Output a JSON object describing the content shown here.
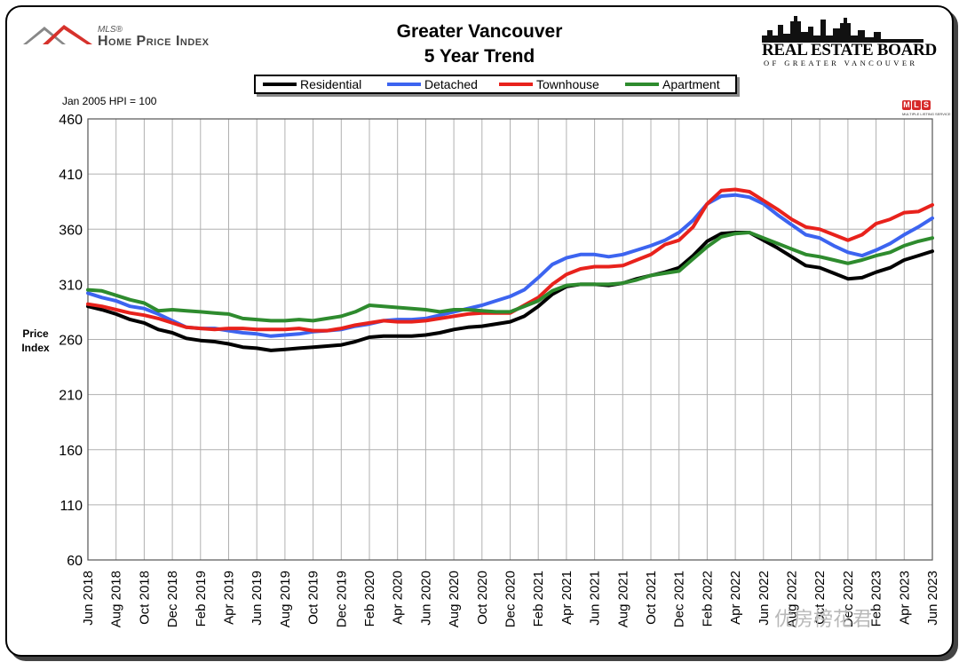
{
  "header": {
    "logo_left_small": "MLS®",
    "logo_left_main": "Home Price Index",
    "title_line1": "Greater Vancouver",
    "title_line2": "5 Year Trend",
    "logo_right_main": "REAL ESTATE BOARD",
    "logo_right_sub": "OF GREATER VANCOUVER",
    "mls_letters": [
      "M",
      "L",
      "S"
    ],
    "mls_sub": "MULTIPLE LISTING SERVICE"
  },
  "note": "Jan 2005 HPI = 100",
  "watermark": "优房榜花君",
  "chart_data": {
    "type": "line",
    "title": "Greater Vancouver 5 Year Trend",
    "xlabel": "",
    "ylabel_lines": [
      "Price",
      "Index"
    ],
    "ylim": [
      60,
      460
    ],
    "yticks": [
      60,
      110,
      160,
      210,
      260,
      310,
      360,
      410,
      460
    ],
    "x_tick_labels": [
      "Jun 2018",
      "Aug 2018",
      "Oct 2018",
      "Dec 2018",
      "Feb 2019",
      "Apr 2019",
      "Jun 2019",
      "Aug 2019",
      "Oct 2019",
      "Dec 2019",
      "Feb 2020",
      "Apr 2020",
      "Jun 2020",
      "Aug 2020",
      "Oct 2020",
      "Dec 2020",
      "Feb 2021",
      "Apr 2021",
      "Jun 2021",
      "Aug 2021",
      "Oct 2021",
      "Dec 2021",
      "Feb 2022",
      "Apr 2022",
      "Jun 2022",
      "Aug 2022",
      "Oct 2022",
      "Dec 2022",
      "Feb 2023",
      "Apr 2023",
      "Jun 2023"
    ],
    "x": [
      "Jun 2018",
      "Jul 2018",
      "Aug 2018",
      "Sep 2018",
      "Oct 2018",
      "Nov 2018",
      "Dec 2018",
      "Jan 2019",
      "Feb 2019",
      "Mar 2019",
      "Apr 2019",
      "May 2019",
      "Jun 2019",
      "Jul 2019",
      "Aug 2019",
      "Sep 2019",
      "Oct 2019",
      "Nov 2019",
      "Dec 2019",
      "Jan 2020",
      "Feb 2020",
      "Mar 2020",
      "Apr 2020",
      "May 2020",
      "Jun 2020",
      "Jul 2020",
      "Aug 2020",
      "Sep 2020",
      "Oct 2020",
      "Nov 2020",
      "Dec 2020",
      "Jan 2021",
      "Feb 2021",
      "Mar 2021",
      "Apr 2021",
      "May 2021",
      "Jun 2021",
      "Jul 2021",
      "Aug 2021",
      "Sep 2021",
      "Oct 2021",
      "Nov 2021",
      "Dec 2021",
      "Jan 2022",
      "Feb 2022",
      "Mar 2022",
      "Apr 2022",
      "May 2022",
      "Jun 2022",
      "Jul 2022",
      "Aug 2022",
      "Sep 2022",
      "Oct 2022",
      "Nov 2022",
      "Dec 2022",
      "Jan 2023",
      "Feb 2023",
      "Mar 2023",
      "Apr 2023",
      "May 2023",
      "Jun 2023"
    ],
    "series": [
      {
        "name": "Residential",
        "color": "#000000",
        "values": [
          290,
          287,
          283,
          278,
          275,
          269,
          266,
          261,
          259,
          258,
          256,
          253,
          252,
          250,
          251,
          252,
          253,
          254,
          255,
          258,
          262,
          263,
          263,
          263,
          264,
          266,
          269,
          271,
          272,
          274,
          276,
          281,
          290,
          301,
          308,
          310,
          310,
          309,
          311,
          315,
          318,
          321,
          325,
          336,
          349,
          356,
          357,
          357,
          350,
          343,
          335,
          327,
          325,
          320,
          315,
          316,
          321,
          325,
          332,
          336,
          340
        ]
      },
      {
        "name": "Detached",
        "color": "#3c64f0",
        "values": [
          302,
          298,
          295,
          290,
          288,
          283,
          277,
          271,
          270,
          270,
          268,
          266,
          265,
          263,
          264,
          265,
          267,
          268,
          269,
          272,
          274,
          277,
          278,
          278,
          279,
          282,
          285,
          288,
          291,
          295,
          299,
          305,
          316,
          328,
          334,
          337,
          337,
          335,
          337,
          341,
          345,
          350,
          357,
          368,
          383,
          390,
          391,
          389,
          383,
          373,
          364,
          355,
          352,
          345,
          339,
          336,
          341,
          347,
          355,
          362,
          370
        ]
      },
      {
        "name": "Townhouse",
        "color": "#e8221c",
        "values": [
          292,
          290,
          287,
          284,
          282,
          279,
          275,
          271,
          270,
          269,
          270,
          270,
          269,
          269,
          269,
          270,
          268,
          268,
          270,
          273,
          275,
          277,
          276,
          276,
          277,
          279,
          281,
          283,
          284,
          284,
          284,
          291,
          298,
          310,
          319,
          324,
          326,
          326,
          327,
          332,
          337,
          346,
          350,
          362,
          383,
          395,
          396,
          394,
          386,
          378,
          369,
          362,
          360,
          355,
          350,
          355,
          365,
          369,
          375,
          376,
          382
        ]
      },
      {
        "name": "Apartment",
        "color": "#2e8b2e",
        "values": [
          305,
          304,
          300,
          296,
          293,
          286,
          287,
          286,
          285,
          284,
          283,
          279,
          278,
          277,
          277,
          278,
          277,
          279,
          281,
          285,
          291,
          290,
          289,
          288,
          287,
          285,
          287,
          287,
          286,
          285,
          285,
          290,
          295,
          304,
          309,
          310,
          310,
          310,
          311,
          314,
          318,
          320,
          322,
          333,
          344,
          353,
          356,
          357,
          352,
          347,
          342,
          337,
          335,
          332,
          329,
          332,
          336,
          339,
          345,
          349,
          352
        ]
      }
    ]
  }
}
